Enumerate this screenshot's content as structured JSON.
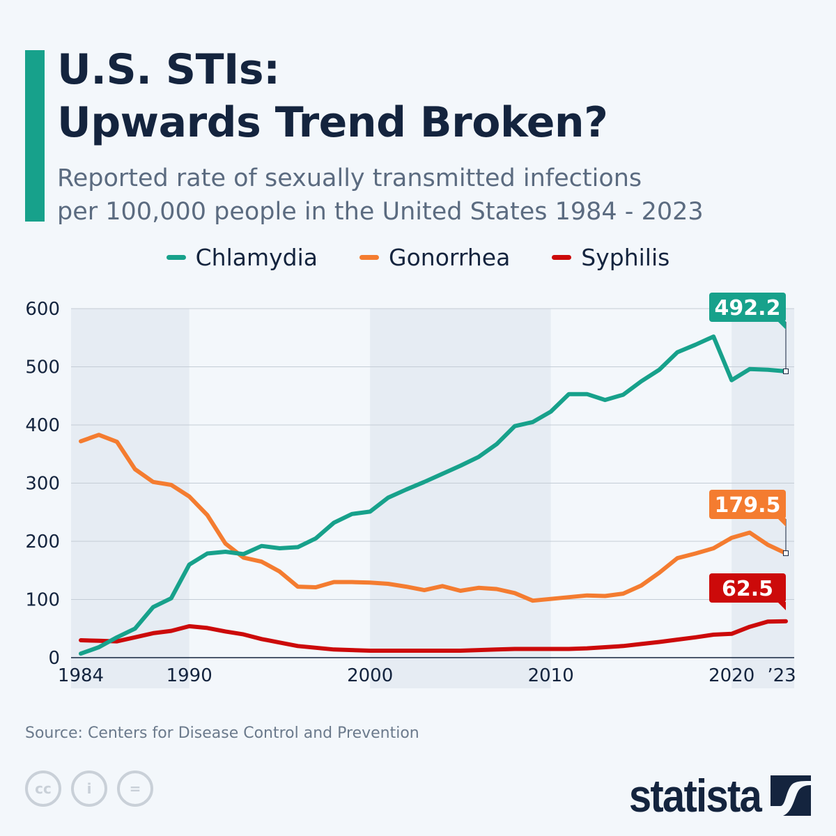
{
  "header": {
    "title_line1": "U.S. STIs:",
    "title_line2": "Upwards Trend Broken?",
    "subtitle_line1": "Reported rate of sexually transmitted infections",
    "subtitle_line2": "per 100,000 people in the United States 1984 - 2023"
  },
  "legend": [
    {
      "label": "Chlamydia",
      "color": "#17a18b"
    },
    {
      "label": "Gonorrhea",
      "color": "#f47c30"
    },
    {
      "label": "Syphilis",
      "color": "#cc0a0a"
    }
  ],
  "chart_data": {
    "type": "line",
    "title": "",
    "xlabel": "",
    "ylabel": "",
    "x": [
      1984,
      1985,
      1986,
      1987,
      1988,
      1989,
      1990,
      1991,
      1992,
      1993,
      1994,
      1995,
      1996,
      1997,
      1998,
      1999,
      2000,
      2001,
      2002,
      2003,
      2004,
      2005,
      2006,
      2007,
      2008,
      2009,
      2010,
      2011,
      2012,
      2013,
      2014,
      2015,
      2016,
      2017,
      2018,
      2019,
      2020,
      2021,
      2022,
      2023
    ],
    "ylim": [
      0,
      600
    ],
    "yticks": [
      "0",
      "100",
      "200",
      "300",
      "400",
      "500",
      "600"
    ],
    "xticks": [
      {
        "year": 1984,
        "label": "1984"
      },
      {
        "year": 1990,
        "label": "1990"
      },
      {
        "year": 2000,
        "label": "2000"
      },
      {
        "year": 2010,
        "label": "2010"
      },
      {
        "year": 2020,
        "label": "2020"
      },
      {
        "year": 2023,
        "label": "’23"
      }
    ],
    "grid": true,
    "shaded_ranges": [
      [
        1984,
        1990
      ],
      [
        2000,
        2010
      ],
      [
        2020,
        2023
      ]
    ],
    "series": [
      {
        "name": "Chlamydia",
        "color": "#17a18b",
        "end_label": "492.2",
        "values": [
          7,
          18,
          35,
          50,
          87,
          102,
          160,
          179,
          182,
          178,
          192,
          188,
          190,
          205,
          232,
          247,
          251,
          275,
          289,
          302,
          316,
          330,
          345,
          367,
          398,
          405,
          423,
          453,
          453,
          443,
          452,
          475,
          495,
          525,
          538,
          552,
          477,
          496,
          495,
          492.2
        ]
      },
      {
        "name": "Gonorrhea",
        "color": "#f47c30",
        "end_label": "179.5",
        "values": [
          372,
          383,
          371,
          324,
          302,
          297,
          277,
          245,
          196,
          172,
          165,
          148,
          122,
          121,
          130,
          130,
          129,
          127,
          122,
          116,
          123,
          115,
          120,
          118,
          111,
          98,
          101,
          104,
          107,
          106,
          110,
          124,
          146,
          171,
          179,
          188,
          206,
          215,
          194,
          179.5
        ]
      },
      {
        "name": "Syphilis",
        "color": "#cc0a0a",
        "end_label": "62.5",
        "values": [
          30,
          29,
          28,
          35,
          42,
          46,
          54,
          51,
          45,
          40,
          32,
          26,
          20,
          17,
          14,
          13,
          12,
          12,
          12,
          12,
          12,
          12,
          13,
          14,
          15,
          15,
          15,
          15,
          16,
          18,
          20,
          23.5,
          27,
          31,
          35,
          39.5,
          41,
          53,
          62,
          62.5
        ]
      }
    ]
  },
  "footer": {
    "source": "Source: Centers for Disease Control and Prevention",
    "logo": "statista"
  }
}
